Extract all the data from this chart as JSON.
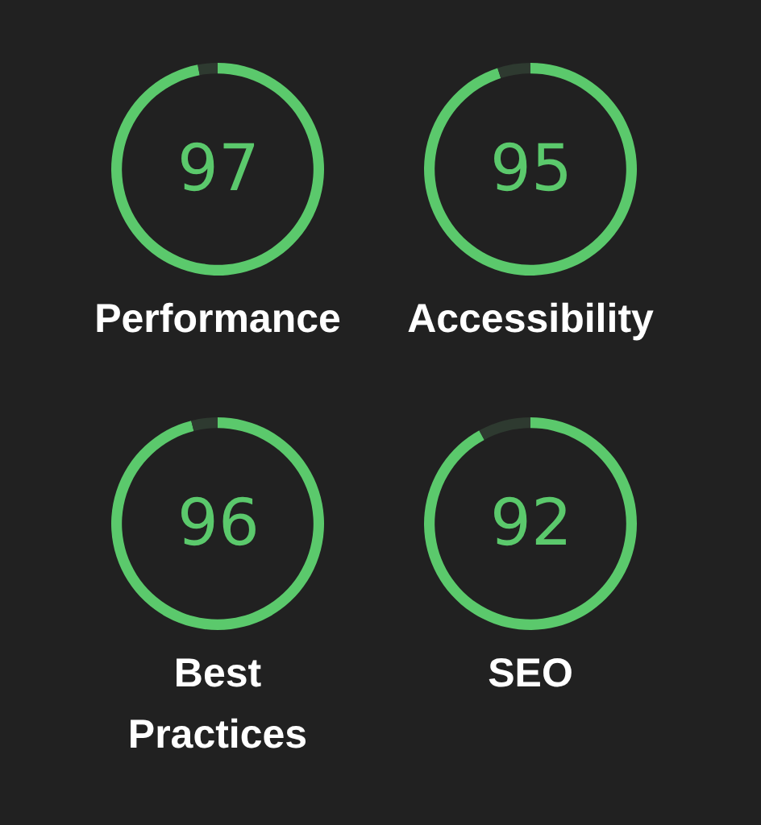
{
  "chart_data": [
    {
      "type": "donut",
      "title": "Performance",
      "categories": [
        null,
        null
      ],
      "values": [
        97,
        3
      ],
      "colors": [
        "#5bc96c",
        "#2e3a30"
      ],
      "annotations": [
        "97"
      ]
    },
    {
      "type": "donut",
      "title": "Accessibility",
      "categories": [
        null,
        null
      ],
      "values": [
        95,
        5
      ],
      "colors": [
        "#5bc96c",
        "#2e3a30"
      ],
      "annotations": [
        "95"
      ]
    },
    {
      "type": "donut",
      "title": "Best Practices",
      "categories": [
        null,
        null
      ],
      "values": [
        96,
        4
      ],
      "colors": [
        "#5bc96c",
        "#2e3a30"
      ],
      "annotations": [
        "96"
      ]
    },
    {
      "type": "donut",
      "title": "SEO",
      "categories": [
        null,
        null
      ],
      "values": [
        92,
        8
      ],
      "colors": [
        "#5bc96c",
        "#2e3a30"
      ],
      "annotations": [
        "92"
      ]
    }
  ]
}
